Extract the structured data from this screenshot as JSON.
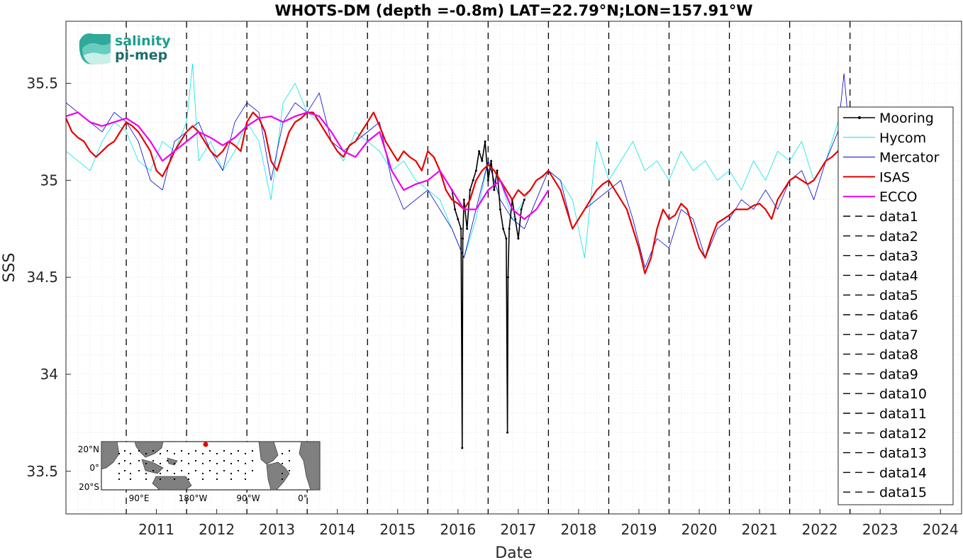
{
  "chart_data": {
    "type": "line",
    "title": "WHOTS-DM (depth =-0.8m) LAT=22.79°N;LON=157.91°W",
    "xlabel": "Date",
    "ylabel": "SSS",
    "xlim": [
      2010.0,
      2024.85
    ],
    "ylim": [
      33.28,
      35.82
    ],
    "x_tick_labels": [
      "2011",
      "2012",
      "2013",
      "2014",
      "2015",
      "2016",
      "2017",
      "2018",
      "2019",
      "2020",
      "2021",
      "2022",
      "2023",
      "2024"
    ],
    "y_ticks": [
      33.5,
      34,
      34.5,
      35,
      35.5
    ],
    "y_tick_labels": [
      "33.5",
      "34",
      "34.5",
      "35",
      "35.5"
    ],
    "grid": "minor dotted",
    "legend_position": "right",
    "vlines": [
      2011,
      2012,
      2013,
      2014,
      2015,
      2016,
      2017,
      2018,
      2019,
      2020,
      2021,
      2022,
      2023
    ],
    "series": [
      {
        "name": "Mooring",
        "color": "#000000",
        "width": 1.6,
        "marker": true,
        "x": [
          2016.4,
          2016.45,
          2016.5,
          2016.55,
          2016.57,
          2016.58,
          2016.6,
          2016.65,
          2016.7,
          2016.75,
          2016.8,
          2016.85,
          2016.9,
          2016.95,
          2017.0,
          2017.05,
          2017.1,
          2017.15,
          2017.2,
          2017.25,
          2017.3,
          2017.32,
          2017.33,
          2017.35,
          2017.4,
          2017.45,
          2017.5,
          2017.55,
          2017.6
        ],
        "y": [
          34.95,
          34.85,
          34.8,
          34.75,
          33.62,
          34.7,
          34.9,
          34.75,
          34.95,
          35.0,
          35.05,
          35.15,
          35.1,
          35.2,
          35.0,
          35.1,
          34.95,
          35.05,
          34.85,
          34.75,
          34.7,
          33.7,
          34.5,
          34.75,
          34.9,
          34.8,
          34.7,
          34.85,
          34.9
        ]
      },
      {
        "name": "Hycom",
        "color": "#00e5e5",
        "width": 0.8,
        "x": [
          2010.0,
          2010.2,
          2010.4,
          2010.6,
          2010.8,
          2011.0,
          2011.2,
          2011.4,
          2011.6,
          2011.8,
          2012.0,
          2012.1,
          2012.2,
          2012.4,
          2012.6,
          2012.8,
          2013.0,
          2013.2,
          2013.4,
          2013.6,
          2013.8,
          2014.0,
          2014.2,
          2014.4,
          2014.6,
          2014.8,
          2015.0,
          2015.2,
          2015.4,
          2015.6,
          2015.8,
          2016.0,
          2016.2,
          2016.4,
          2016.6,
          2016.8,
          2017.0,
          2017.2,
          2017.4,
          2017.6,
          2017.8,
          2018.0,
          2018.2,
          2018.4,
          2018.6,
          2018.8,
          2019.0,
          2019.2,
          2019.4,
          2019.6,
          2019.8,
          2020.0,
          2020.2,
          2020.4,
          2020.6,
          2020.8,
          2021.0,
          2021.2,
          2021.4,
          2021.6,
          2021.8,
          2022.0,
          2022.2,
          2022.4,
          2022.6,
          2022.8,
          2023.0
        ],
        "y": [
          35.15,
          35.1,
          35.05,
          35.2,
          35.3,
          35.25,
          35.1,
          35.05,
          35.2,
          35.15,
          35.3,
          35.6,
          35.1,
          35.2,
          35.05,
          35.15,
          35.3,
          35.2,
          34.9,
          35.4,
          35.5,
          35.35,
          35.3,
          35.2,
          35.1,
          35.25,
          35.2,
          35.15,
          35.05,
          35.1,
          35.0,
          34.95,
          34.9,
          34.75,
          34.6,
          34.8,
          35.1,
          35.0,
          34.8,
          34.9,
          35.0,
          35.05,
          35.0,
          34.9,
          34.6,
          35.2,
          35.0,
          35.1,
          35.2,
          35.05,
          35.1,
          35.0,
          35.15,
          35.05,
          35.1,
          35.0,
          35.05,
          34.95,
          35.1,
          35.0,
          35.15,
          35.1,
          35.2,
          35.0,
          35.1,
          35.3,
          35.2
        ]
      },
      {
        "name": "Mercator",
        "color": "#0000cc",
        "width": 0.8,
        "x": [
          2010.0,
          2010.2,
          2010.4,
          2010.6,
          2010.8,
          2011.0,
          2011.2,
          2011.4,
          2011.6,
          2011.8,
          2012.0,
          2012.2,
          2012.4,
          2012.6,
          2012.8,
          2013.0,
          2013.2,
          2013.4,
          2013.6,
          2013.8,
          2014.0,
          2014.2,
          2014.4,
          2014.6,
          2014.8,
          2015.0,
          2015.2,
          2015.4,
          2015.6,
          2015.8,
          2016.0,
          2016.2,
          2016.4,
          2016.6,
          2016.8,
          2017.0,
          2017.2,
          2017.4,
          2017.6,
          2017.8,
          2018.0,
          2018.2,
          2018.4,
          2018.6,
          2018.8,
          2019.0,
          2019.2,
          2019.4,
          2019.6,
          2019.8,
          2020.0,
          2020.2,
          2020.4,
          2020.6,
          2020.8,
          2021.0,
          2021.2,
          2021.4,
          2021.6,
          2021.8,
          2022.0,
          2022.2,
          2022.4,
          2022.6,
          2022.8,
          2022.9,
          2023.0
        ],
        "y": [
          35.4,
          35.35,
          35.3,
          35.25,
          35.35,
          35.3,
          35.2,
          35.0,
          34.95,
          35.2,
          35.25,
          35.3,
          35.15,
          35.05,
          35.3,
          35.4,
          35.35,
          35.0,
          35.3,
          35.4,
          35.35,
          35.45,
          35.2,
          35.15,
          35.2,
          35.25,
          35.3,
          35.0,
          34.85,
          34.9,
          34.95,
          34.85,
          34.75,
          34.6,
          34.85,
          35.1,
          34.9,
          34.8,
          34.75,
          34.9,
          35.05,
          35.0,
          34.75,
          34.85,
          34.9,
          34.95,
          35.0,
          34.8,
          34.55,
          34.7,
          34.65,
          34.85,
          34.8,
          34.6,
          34.75,
          34.8,
          34.9,
          34.85,
          34.95,
          34.85,
          35.0,
          35.05,
          34.9,
          35.1,
          35.25,
          35.55,
          35.2
        ]
      },
      {
        "name": "ISAS",
        "color": "#e60000",
        "width": 2.2,
        "x": [
          2010.0,
          2010.1,
          2010.2,
          2010.3,
          2010.4,
          2010.5,
          2010.6,
          2010.7,
          2010.8,
          2010.9,
          2011.0,
          2011.1,
          2011.2,
          2011.3,
          2011.4,
          2011.5,
          2011.6,
          2011.7,
          2011.8,
          2011.9,
          2012.0,
          2012.1,
          2012.2,
          2012.3,
          2012.4,
          2012.5,
          2012.6,
          2012.7,
          2012.8,
          2012.9,
          2013.0,
          2013.1,
          2013.2,
          2013.3,
          2013.4,
          2013.5,
          2013.6,
          2013.7,
          2013.8,
          2013.9,
          2014.0,
          2014.1,
          2014.2,
          2014.3,
          2014.4,
          2014.5,
          2014.6,
          2014.7,
          2014.8,
          2014.9,
          2015.0,
          2015.1,
          2015.2,
          2015.3,
          2015.4,
          2015.5,
          2015.6,
          2015.7,
          2015.8,
          2015.9,
          2016.0,
          2016.1,
          2016.2,
          2016.3,
          2016.4,
          2016.5,
          2016.6,
          2016.7,
          2016.8,
          2016.9,
          2017.0,
          2017.1,
          2017.2,
          2017.3,
          2017.4,
          2017.5,
          2017.6,
          2017.7,
          2017.8,
          2017.9,
          2018.0,
          2018.1,
          2018.2,
          2018.3,
          2018.4,
          2018.5,
          2018.6,
          2018.7,
          2018.8,
          2018.9,
          2019.0,
          2019.1,
          2019.2,
          2019.3,
          2019.4,
          2019.5,
          2019.6,
          2019.7,
          2019.8,
          2019.9,
          2020.0,
          2020.1,
          2020.2,
          2020.3,
          2020.4,
          2020.5,
          2020.6,
          2020.7,
          2020.8,
          2020.9,
          2021.0,
          2021.1,
          2021.2,
          2021.3,
          2021.4,
          2021.5,
          2021.6,
          2021.7,
          2021.8,
          2021.9,
          2022.0,
          2022.1,
          2022.2,
          2022.3,
          2022.4,
          2022.5,
          2022.6,
          2022.7,
          2022.8,
          2022.9,
          2023.0
        ],
        "y": [
          35.32,
          35.25,
          35.22,
          35.2,
          35.15,
          35.12,
          35.15,
          35.18,
          35.2,
          35.25,
          35.3,
          35.28,
          35.25,
          35.2,
          35.15,
          35.05,
          35.02,
          35.08,
          35.15,
          35.2,
          35.25,
          35.28,
          35.25,
          35.2,
          35.15,
          35.12,
          35.15,
          35.2,
          35.18,
          35.15,
          35.3,
          35.35,
          35.32,
          35.25,
          35.1,
          35.05,
          35.15,
          35.25,
          35.3,
          35.32,
          35.35,
          35.35,
          35.3,
          35.25,
          35.2,
          35.15,
          35.12,
          35.18,
          35.2,
          35.25,
          35.3,
          35.35,
          35.28,
          35.2,
          35.15,
          35.1,
          35.15,
          35.12,
          35.1,
          35.05,
          35.15,
          35.12,
          35.05,
          34.95,
          34.9,
          34.88,
          34.85,
          34.9,
          35.0,
          35.05,
          35.08,
          35.05,
          35.0,
          34.95,
          34.9,
          34.95,
          34.92,
          34.95,
          35.0,
          35.02,
          35.05,
          35.0,
          34.95,
          34.85,
          34.75,
          34.8,
          34.85,
          34.9,
          34.95,
          34.98,
          35.0,
          34.95,
          34.9,
          34.85,
          34.75,
          34.65,
          34.52,
          34.6,
          34.75,
          34.85,
          34.8,
          34.82,
          34.88,
          34.85,
          34.75,
          34.65,
          34.6,
          34.7,
          34.78,
          34.8,
          34.82,
          34.85,
          34.85,
          34.85,
          34.87,
          34.88,
          34.85,
          34.8,
          34.9,
          34.95,
          35.0,
          35.02,
          35.0,
          34.98,
          35.0,
          35.05,
          35.1,
          35.12,
          35.15,
          35.2,
          35.3
        ]
      },
      {
        "name": "ECCO",
        "color": "#ee00ee",
        "width": 2.2,
        "x": [
          2010.0,
          2010.2,
          2010.4,
          2010.6,
          2010.8,
          2011.0,
          2011.2,
          2011.4,
          2011.6,
          2011.8,
          2012.0,
          2012.2,
          2012.4,
          2012.6,
          2012.8,
          2013.0,
          2013.2,
          2013.4,
          2013.6,
          2013.8,
          2014.0,
          2014.2,
          2014.4,
          2014.6,
          2014.8,
          2015.0,
          2015.2,
          2015.4,
          2015.6,
          2015.8,
          2016.0,
          2016.2,
          2016.4,
          2016.6,
          2016.8,
          2017.0,
          2017.2,
          2017.4,
          2017.6,
          2017.8,
          2018.0
        ],
        "y": [
          35.33,
          35.35,
          35.3,
          35.28,
          35.3,
          35.32,
          35.28,
          35.2,
          35.1,
          35.15,
          35.2,
          35.25,
          35.22,
          35.18,
          35.22,
          35.28,
          35.32,
          35.33,
          35.3,
          35.33,
          35.35,
          35.33,
          35.25,
          35.15,
          35.12,
          35.2,
          35.25,
          35.05,
          34.95,
          34.98,
          35.0,
          35.05,
          34.95,
          34.85,
          34.85,
          34.95,
          35.0,
          34.85,
          34.8,
          34.85,
          34.95
        ]
      },
      {
        "name": "data1",
        "color": "#000000",
        "width": 1.4,
        "dash": true,
        "legend_only": true,
        "x": [],
        "y": []
      },
      {
        "name": "data2",
        "color": "#000000",
        "width": 1.4,
        "dash": true,
        "legend_only": true,
        "x": [],
        "y": []
      },
      {
        "name": "data3",
        "color": "#000000",
        "width": 1.4,
        "dash": true,
        "legend_only": true,
        "x": [],
        "y": []
      },
      {
        "name": "data4",
        "color": "#000000",
        "width": 1.4,
        "dash": true,
        "legend_only": true,
        "x": [],
        "y": []
      },
      {
        "name": "data5",
        "color": "#000000",
        "width": 1.4,
        "dash": true,
        "legend_only": true,
        "x": [],
        "y": []
      },
      {
        "name": "data6",
        "color": "#000000",
        "width": 1.4,
        "dash": true,
        "legend_only": true,
        "x": [],
        "y": []
      },
      {
        "name": "data7",
        "color": "#000000",
        "width": 1.4,
        "dash": true,
        "legend_only": true,
        "x": [],
        "y": []
      },
      {
        "name": "data8",
        "color": "#000000",
        "width": 1.4,
        "dash": true,
        "legend_only": true,
        "x": [],
        "y": []
      },
      {
        "name": "data9",
        "color": "#000000",
        "width": 1.4,
        "dash": true,
        "legend_only": true,
        "x": [],
        "y": []
      },
      {
        "name": "data10",
        "color": "#000000",
        "width": 1.4,
        "dash": true,
        "legend_only": true,
        "x": [],
        "y": []
      },
      {
        "name": "data11",
        "color": "#000000",
        "width": 1.4,
        "dash": true,
        "legend_only": true,
        "x": [],
        "y": []
      },
      {
        "name": "data12",
        "color": "#000000",
        "width": 1.4,
        "dash": true,
        "legend_only": true,
        "x": [],
        "y": []
      },
      {
        "name": "data13",
        "color": "#000000",
        "width": 1.4,
        "dash": true,
        "legend_only": true,
        "x": [],
        "y": []
      },
      {
        "name": "data14",
        "color": "#000000",
        "width": 1.4,
        "dash": true,
        "legend_only": true,
        "x": [],
        "y": []
      },
      {
        "name": "data15",
        "color": "#000000",
        "width": 1.4,
        "dash": true,
        "legend_only": true,
        "x": [],
        "y": []
      }
    ]
  },
  "logo": {
    "line1": "salinity",
    "line2": "pi-mep",
    "color": "#1a9e8f"
  },
  "inset_map": {
    "lat_labels": [
      "20°N",
      "0°",
      "20°S"
    ],
    "lon_labels": [
      "90°E",
      "180°W",
      "90°W",
      "0°"
    ],
    "land_color": "#808080",
    "marker_color": "#e60000"
  }
}
